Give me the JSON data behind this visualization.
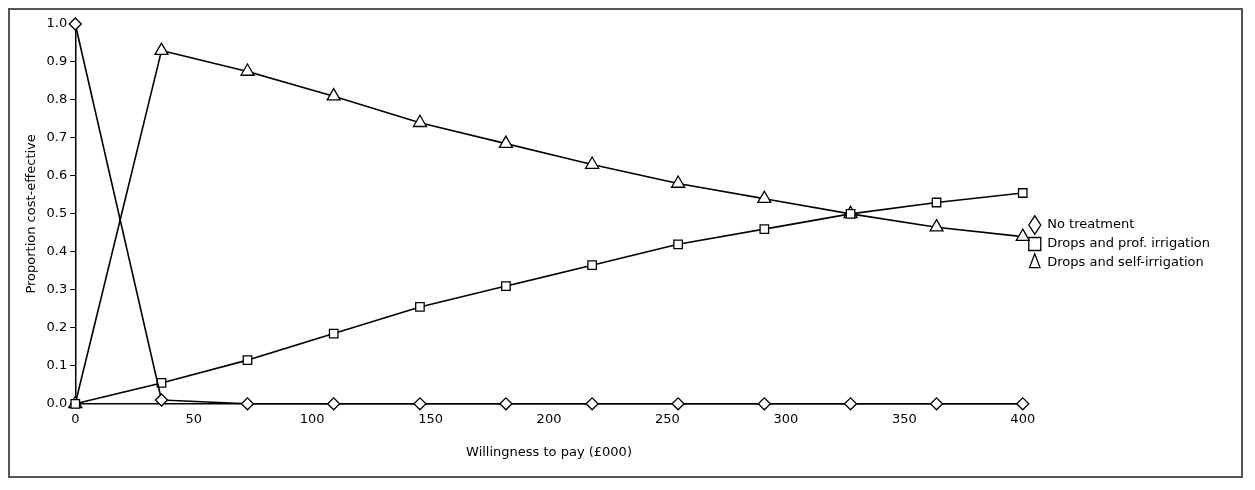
{
  "chart_data": {
    "type": "line",
    "xlabel": "Willingness to pay (£000)",
    "ylabel": "Proportion cost-effective",
    "x": [
      0,
      36.4,
      72.7,
      109.1,
      145.5,
      181.8,
      218.2,
      254.5,
      290.9,
      327.3,
      363.6,
      400
    ],
    "series": [
      {
        "name": "No treatment",
        "color": "#000000",
        "marker": "diamond",
        "values": [
          1.0,
          0.01,
          0,
          0,
          0,
          0,
          0,
          0,
          0,
          0,
          0,
          0
        ]
      },
      {
        "name": "Drops and prof. irrigation",
        "color": "#000000",
        "marker": "square",
        "values": [
          0,
          0.055,
          0.115,
          0.185,
          0.255,
          0.31,
          0.365,
          0.42,
          0.46,
          0.5,
          0.53,
          0.555
        ]
      },
      {
        "name": "Drops and self-irrigation",
        "color": "#000000",
        "marker": "triangle",
        "values": [
          0,
          0.93,
          0.875,
          0.81,
          0.74,
          0.685,
          0.63,
          0.58,
          0.54,
          0.5,
          0.465,
          0.44
        ]
      }
    ],
    "xlim": [
      0,
      400
    ],
    "xticks": [
      0,
      50,
      100,
      150,
      200,
      250,
      300,
      350,
      400
    ],
    "ylim": [
      0,
      1
    ],
    "yticks": [
      {
        "value": 0,
        "label": "0.0"
      },
      {
        "value": 0.1,
        "label": "0.1"
      },
      {
        "value": 0.2,
        "label": "0.2"
      },
      {
        "value": 0.3,
        "label": "0.3"
      },
      {
        "value": 0.4,
        "label": "0.4"
      },
      {
        "value": 0.5,
        "label": "0.5"
      },
      {
        "value": 0.6,
        "label": "0.6"
      },
      {
        "value": 0.7,
        "label": "0.7"
      },
      {
        "value": 0.8,
        "label": "0.8"
      },
      {
        "value": 0.9,
        "label": "0.9"
      },
      {
        "value": 1,
        "label": "1.0"
      }
    ],
    "grid": false,
    "legend": "right",
    "line_style": "solid"
  }
}
